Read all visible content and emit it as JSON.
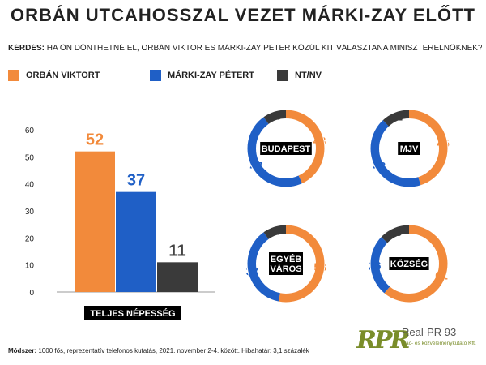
{
  "title": "ORBÁN UTCAHOSSZAL VEZET MÁRKI-ZAY ELŐTT",
  "question": {
    "label": "KÉRDÉS:",
    "text": "HA ÖN DÖNTHETNÉ EL, ORBÁN VIKTOR ÉS MÁRKI-ZAY PÉTER KÖZÜL KIT VÁLASZTANA MINISZTERELNÖKNEK?"
  },
  "legend": [
    {
      "label": "ORBÁN VIKTORT",
      "color": "#f28a3b"
    },
    {
      "label": "MÁRKI-ZAY PÉTERT",
      "color": "#1f5fc6"
    },
    {
      "label": "NT/NV",
      "color": "#3a3a3a"
    }
  ],
  "chart_data": [
    {
      "type": "bar",
      "categories": [
        "TELJES NÉPESSÉG"
      ],
      "series": [
        {
          "name": "ORBÁN VIKTORT",
          "values": [
            52
          ],
          "color": "#f28a3b"
        },
        {
          "name": "MÁRKI-ZAY PÉTERT",
          "values": [
            37
          ],
          "color": "#1f5fc6"
        },
        {
          "name": "NT/NV",
          "values": [
            11
          ],
          "color": "#3a3a3a"
        }
      ],
      "yticks": [
        0,
        10,
        20,
        30,
        40,
        50,
        60
      ],
      "ylim": [
        0,
        60
      ]
    },
    {
      "type": "pie",
      "donut": true,
      "label": "BUDAPEST",
      "values": [
        43,
        47,
        10
      ]
    },
    {
      "type": "pie",
      "donut": true,
      "label": "MJV",
      "values": [
        45,
        43,
        12
      ]
    },
    {
      "type": "pie",
      "donut": true,
      "label": "EGYÉB VÁROS",
      "values": [
        53,
        37,
        10
      ]
    },
    {
      "type": "pie",
      "donut": true,
      "label": "KÖZSÉG",
      "values": [
        61,
        26,
        13
      ]
    }
  ],
  "footer": {
    "label": "Módszer:",
    "text": "1000 fős, reprezentatív telefonos kutatás, 2021. november 2-4. között. Hibahatár: 3,1 százalék"
  },
  "logo": {
    "name": "Real-PR 93",
    "subtitle": "piac- és közvéleménykutató Kft."
  }
}
